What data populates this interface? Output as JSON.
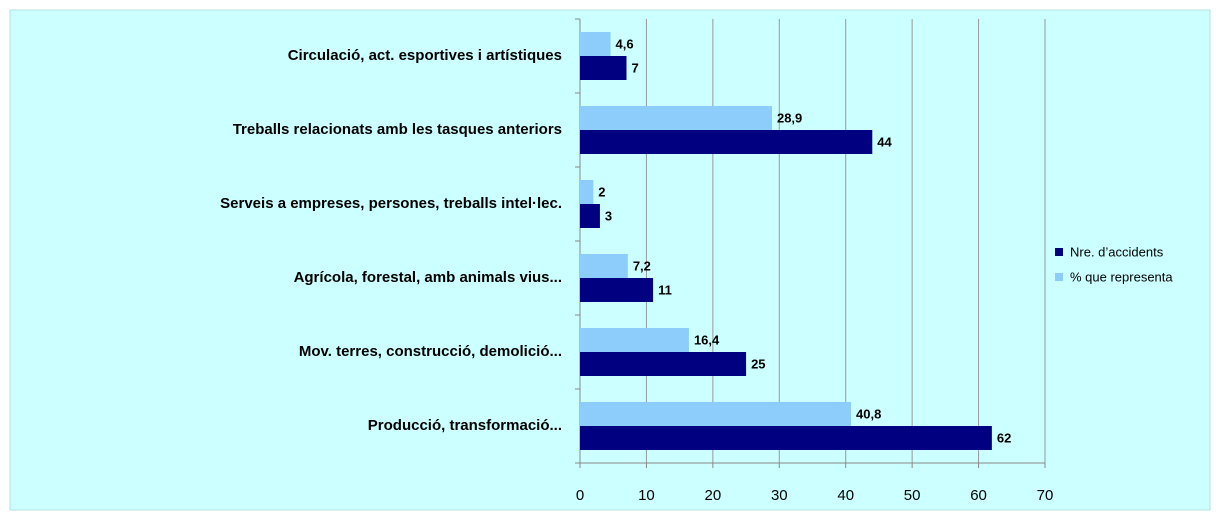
{
  "chart_data": {
    "type": "bar",
    "orientation": "horizontal",
    "categories": [
      "Circulació, act. esportives i artístiques",
      "Treballs relacionats amb les tasques anteriors",
      "Serveis a empreses, persones, treballs intel·lec.",
      "Agrícola, forestal, amb animals vius...",
      "Mov. terres, construcció, demolició...",
      "Producció, transformació..."
    ],
    "series": [
      {
        "name": "Nre. d’accidents",
        "color": "#000080",
        "values": [
          7,
          44,
          3,
          11,
          25,
          62
        ]
      },
      {
        "name": "% que representa",
        "color": "#8ccdfc",
        "values": [
          4.6,
          28.9,
          2,
          7.2,
          16.4,
          40.8
        ],
        "value_labels": [
          "4,6",
          "28,9",
          "2",
          "7,2",
          "16,4",
          "40,8"
        ]
      }
    ],
    "xlim": [
      0,
      70
    ],
    "xticks": [
      0,
      10,
      20,
      30,
      40,
      50,
      60,
      70
    ],
    "grid": true,
    "legend": "right"
  }
}
